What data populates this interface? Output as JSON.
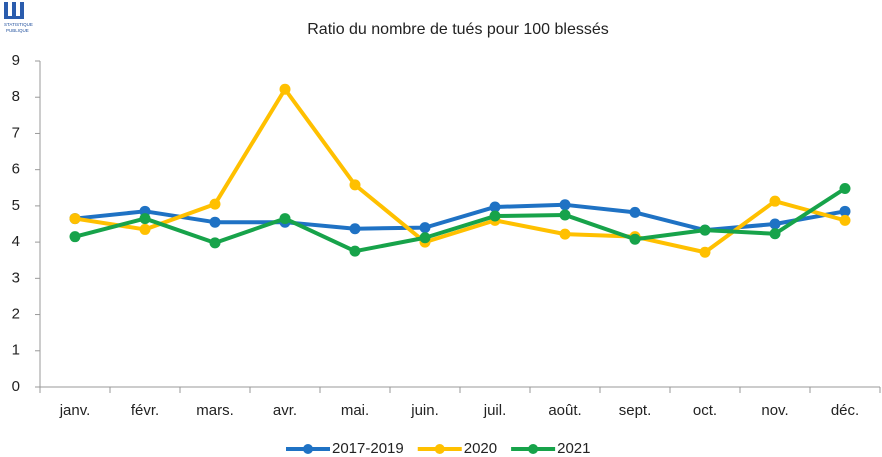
{
  "chart_data": {
    "type": "line",
    "logo_text": [
      "STATISTIQUE",
      "PUBLIQUE"
    ],
    "title": "Ratio du nombre de tués pour 100 blessés",
    "categories": [
      "janv.",
      "févr.",
      "mars.",
      "avr.",
      "mai.",
      "juin.",
      "juil.",
      "août.",
      "sept.",
      "oct.",
      "nov.",
      "déc."
    ],
    "series": [
      {
        "name": "2017-2019",
        "color": "#1f72c4",
        "values": [
          4.65,
          4.85,
          4.55,
          4.55,
          4.37,
          4.4,
          4.97,
          5.03,
          4.82,
          4.33,
          4.5,
          4.85
        ]
      },
      {
        "name": "2020",
        "color": "#ffc000",
        "values": [
          4.65,
          4.35,
          5.05,
          8.22,
          5.58,
          4.0,
          4.6,
          4.22,
          4.15,
          3.72,
          5.13,
          4.6
        ]
      },
      {
        "name": "2021",
        "color": "#17a34a",
        "values": [
          4.15,
          4.65,
          3.98,
          4.65,
          3.75,
          4.12,
          4.72,
          4.75,
          4.08,
          4.33,
          4.23,
          5.48
        ]
      }
    ],
    "ylim": [
      0,
      9
    ],
    "yticks": [
      0,
      1,
      2,
      3,
      4,
      5,
      6,
      7,
      8,
      9
    ],
    "grid": false,
    "legend": "bottom"
  }
}
